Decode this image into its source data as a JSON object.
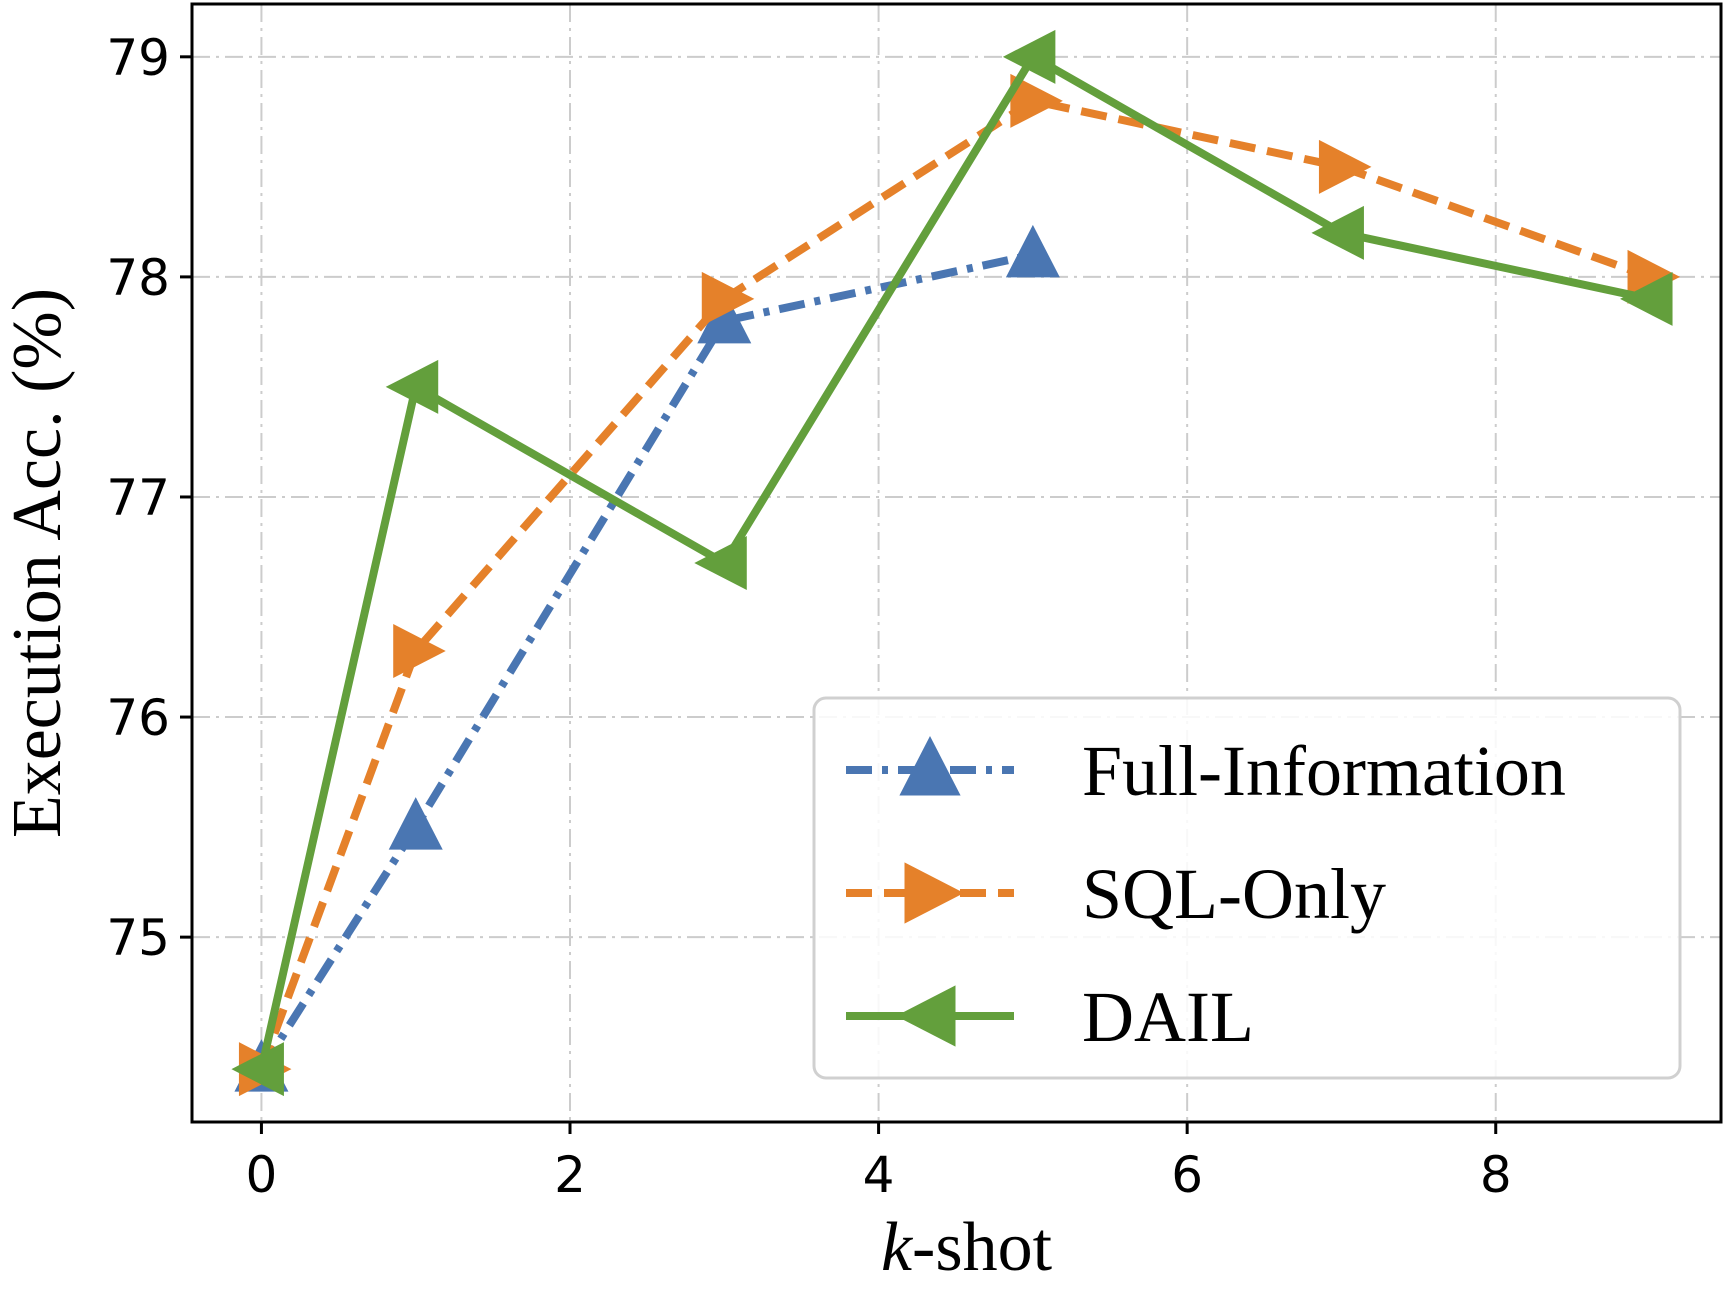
{
  "chart_data": {
    "type": "line",
    "title": "",
    "xlabel_italic": "k",
    "xlabel_rest": "-shot",
    "ylabel": "Execution Acc. (%)",
    "xlim": [
      -0.45,
      9.46
    ],
    "ylim": [
      74.16,
      79.24
    ],
    "xticks": [
      0,
      2,
      4,
      6,
      8
    ],
    "xtick_labels": [
      "0",
      "2",
      "4",
      "6",
      "8"
    ],
    "yticks": [
      75,
      76,
      77,
      78,
      79
    ],
    "ytick_labels": [
      "75",
      "76",
      "77",
      "78",
      "79"
    ],
    "grid": true,
    "legend_position": "lower-right",
    "series": [
      {
        "name": "Full-Information",
        "color": "#4a76b2",
        "line_style": "dashdot",
        "marker": "triangle-up",
        "x": [
          0,
          1,
          3,
          5
        ],
        "values": [
          74.4,
          75.5,
          77.8,
          78.1
        ]
      },
      {
        "name": "SQL-Only",
        "color": "#e5812a",
        "line_style": "dashed",
        "marker": "triangle-right",
        "x": [
          0,
          1,
          3,
          5,
          7,
          9
        ],
        "values": [
          74.4,
          76.3,
          77.9,
          78.8,
          78.5,
          78.0
        ]
      },
      {
        "name": "DAIL",
        "color": "#639f3c",
        "line_style": "solid",
        "marker": "triangle-left",
        "x": [
          0,
          1,
          3,
          5,
          7,
          9
        ],
        "values": [
          74.4,
          77.5,
          76.7,
          79.0,
          78.2,
          77.9
        ]
      }
    ]
  }
}
